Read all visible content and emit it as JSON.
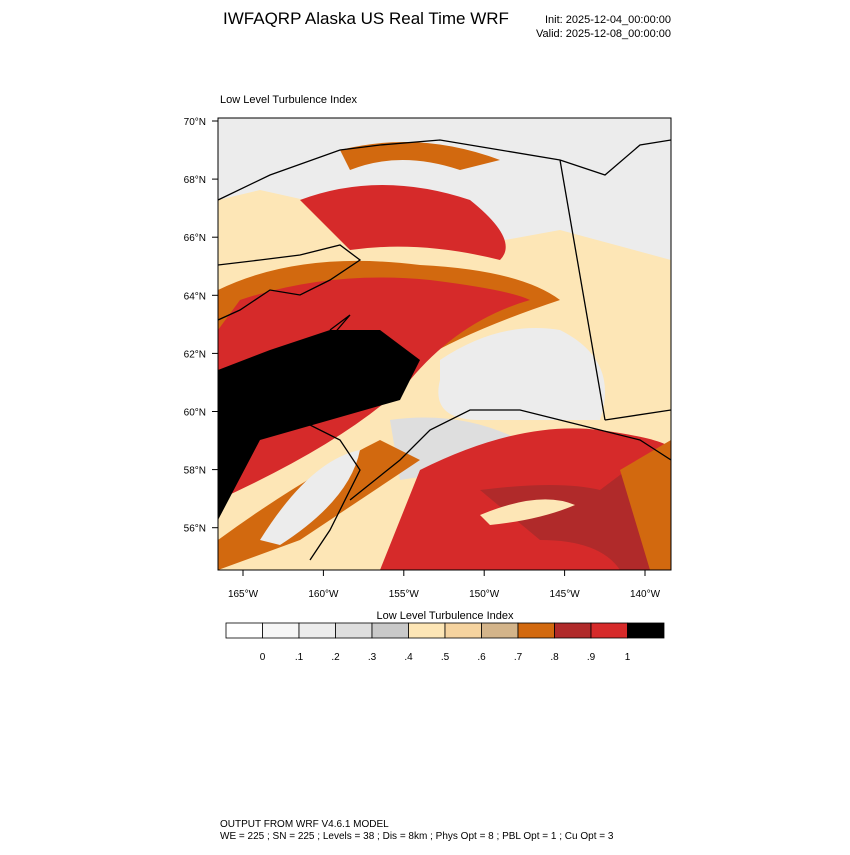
{
  "header": {
    "title": "IWFAQRP Alaska US Real Time WRF",
    "init": "Init: 2025-12-04_00:00:00",
    "valid": "Valid: 2025-12-08_00:00:00"
  },
  "map": {
    "title": "Low Level Turbulence Index",
    "lat_labels": [
      "70°N",
      "68°N",
      "66°N",
      "64°N",
      "62°N",
      "60°N",
      "58°N",
      "56°N"
    ],
    "lon_labels": [
      "165°W",
      "160°W",
      "155°W",
      "150°W",
      "145°W",
      "140°W"
    ]
  },
  "colorbar": {
    "title": "Low Level Turbulence Index",
    "colors": [
      "#ffffff",
      "#f6f6f6",
      "#ececec",
      "#dedede",
      "#c9c9c9",
      "#fde6b6",
      "#f5d39f",
      "#d3b48a",
      "#d2690f",
      "#b02a2a",
      "#d62a2a",
      "#000000"
    ],
    "labels": [
      "0",
      ".1",
      ".2",
      ".3",
      ".4",
      ".5",
      ".6",
      ".7",
      ".8",
      ".9",
      "1"
    ]
  },
  "footer": {
    "line1": "OUTPUT FROM WRF V4.6.1 MODEL",
    "line2": "WE = 225 ; SN = 225 ; Levels = 38 ; Dis = 8km ; Phys Opt = 8 ; PBL Opt = 1 ; Cu Opt = 3"
  }
}
